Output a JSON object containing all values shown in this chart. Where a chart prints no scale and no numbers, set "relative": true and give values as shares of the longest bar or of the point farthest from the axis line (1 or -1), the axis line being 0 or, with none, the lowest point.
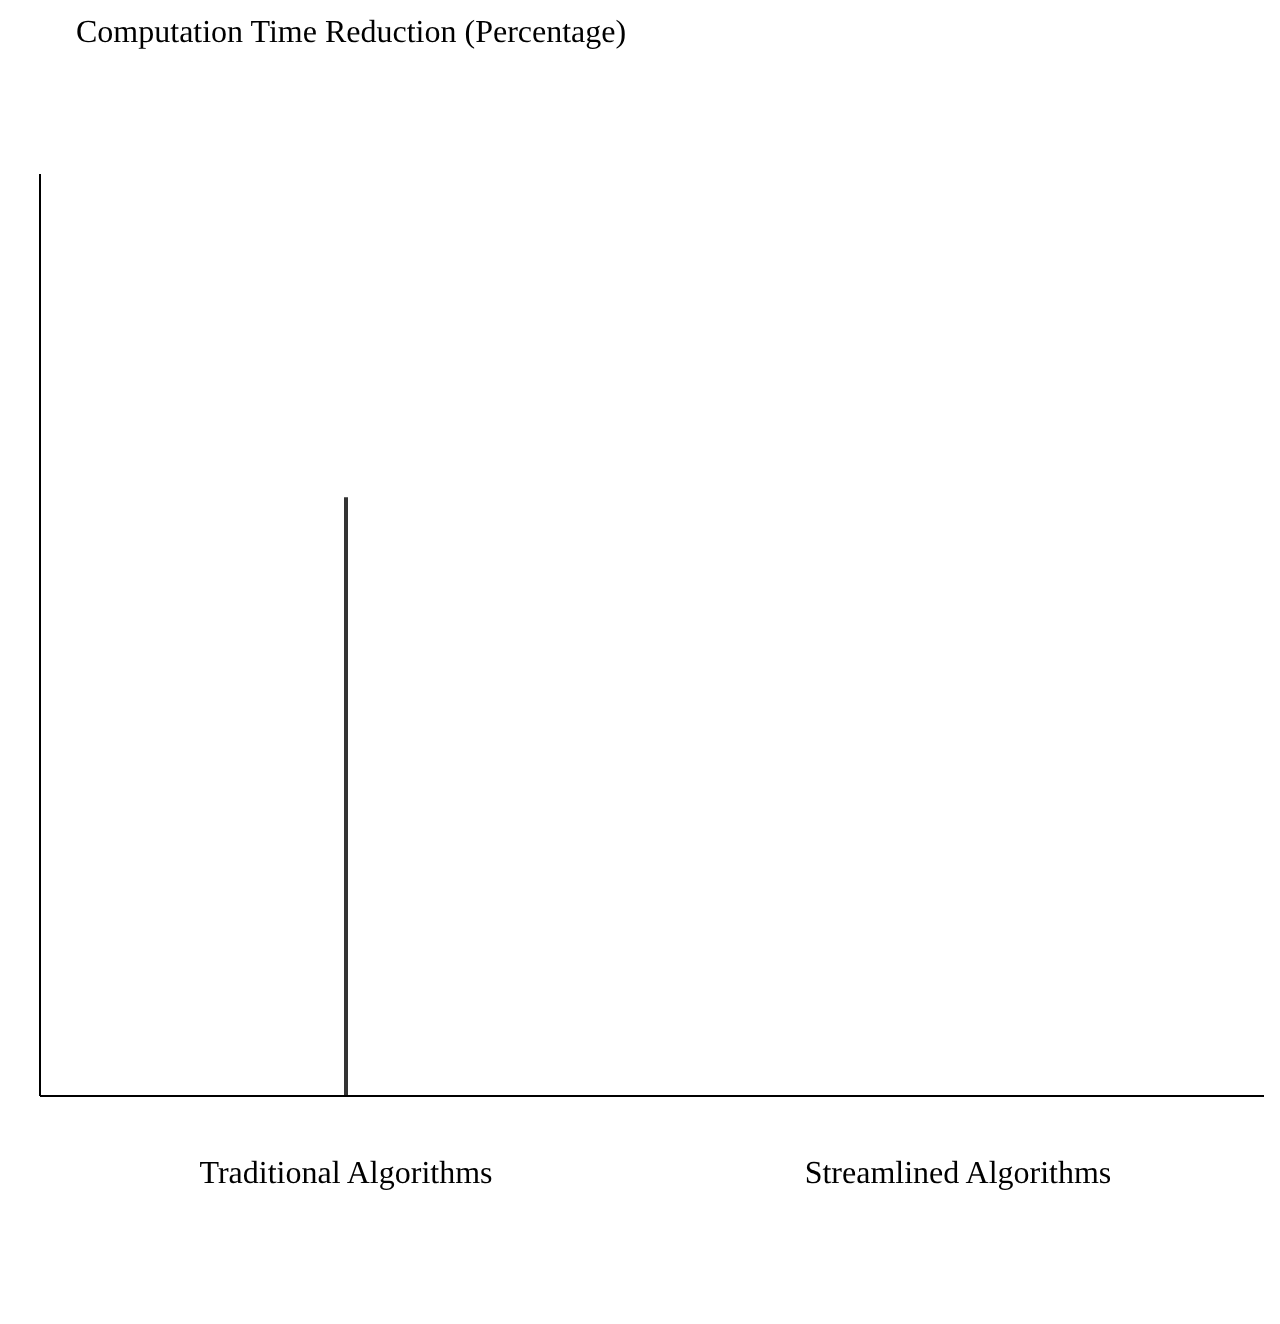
{
  "chart_data": {
    "type": "bar",
    "title": "Computation Time Reduction (Percentage)",
    "categories": [
      "Traditional Algorithms",
      "Streamlined Algorithms"
    ],
    "relative": true,
    "color": "#333333",
    "values": [
      1,
      null
    ]
  }
}
